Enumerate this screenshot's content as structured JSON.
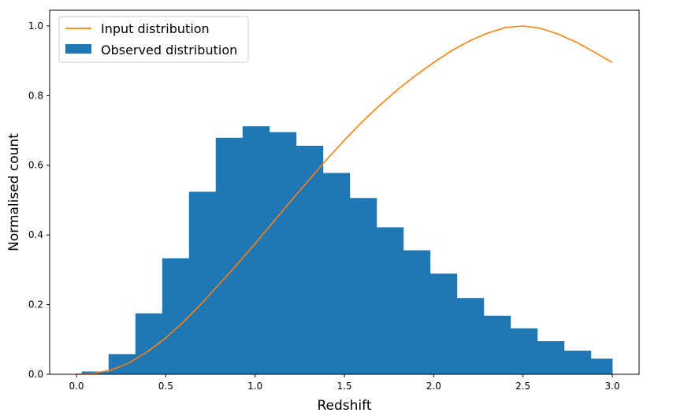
{
  "chart_data": {
    "type": "bar",
    "xlabel": "Redshift",
    "ylabel": "Normalised count",
    "xlim": [
      -0.15,
      3.15
    ],
    "ylim": [
      0,
      1.045
    ],
    "x_ticks": [
      0.0,
      0.5,
      1.0,
      1.5,
      2.0,
      2.5,
      3.0
    ],
    "x_tick_labels": [
      "0.0",
      "0.5",
      "1.0",
      "1.5",
      "2.0",
      "2.5",
      "3.0"
    ],
    "y_ticks": [
      0.0,
      0.2,
      0.4,
      0.6,
      0.8,
      1.0
    ],
    "y_tick_labels": [
      "0.0",
      "0.2",
      "0.4",
      "0.6",
      "0.8",
      "1.0"
    ],
    "grid": false,
    "legend_position": "top-left",
    "colors": {
      "histogram": "#1f77b4",
      "line": "#ff7f0e"
    },
    "series": [
      {
        "name": "Observed distribution",
        "type": "histogram",
        "bin_edges": [
          0.03,
          0.18,
          0.33,
          0.48,
          0.63,
          0.78,
          0.93,
          1.08,
          1.23,
          1.38,
          1.53,
          1.68,
          1.83,
          1.98,
          2.13,
          2.28,
          2.43,
          2.58,
          2.73,
          2.88,
          3.0
        ],
        "values": [
          0.008,
          0.058,
          0.175,
          0.333,
          0.524,
          0.679,
          0.712,
          0.695,
          0.656,
          0.578,
          0.506,
          0.422,
          0.356,
          0.289,
          0.219,
          0.168,
          0.132,
          0.095,
          0.068,
          0.045
        ]
      },
      {
        "name": "Input distribution",
        "type": "line",
        "x": [
          0.0,
          0.1,
          0.2,
          0.3,
          0.4,
          0.5,
          0.6,
          0.7,
          0.8,
          0.9,
          1.0,
          1.1,
          1.2,
          1.3,
          1.4,
          1.5,
          1.6,
          1.7,
          1.8,
          1.9,
          2.0,
          2.1,
          2.2,
          2.3,
          2.4,
          2.5,
          2.6,
          2.7,
          2.8,
          2.9,
          3.0
        ],
        "y": [
          0.0,
          0.003,
          0.013,
          0.034,
          0.066,
          0.104,
          0.151,
          0.203,
          0.259,
          0.316,
          0.375,
          0.436,
          0.497,
          0.557,
          0.616,
          0.672,
          0.725,
          0.773,
          0.818,
          0.858,
          0.895,
          0.929,
          0.957,
          0.979,
          0.995,
          1.0,
          0.993,
          0.976,
          0.953,
          0.925,
          0.895
        ]
      }
    ]
  }
}
